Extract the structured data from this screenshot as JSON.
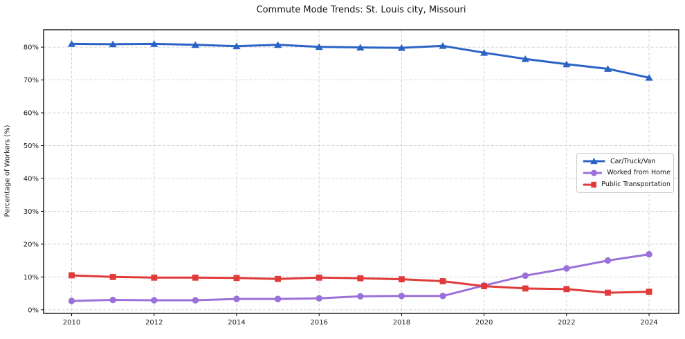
{
  "chart_data": {
    "type": "line",
    "title": "Commute Mode Trends: St. Louis city, Missouri",
    "xlabel": "",
    "ylabel": "Percentage of Workers (%)",
    "x": [
      2010,
      2011,
      2012,
      2013,
      2014,
      2015,
      2016,
      2017,
      2018,
      2019,
      2020,
      2021,
      2022,
      2023,
      2024
    ],
    "xlim": [
      2009.32,
      2024.72
    ],
    "ylim": [
      -1.1,
      85.3
    ],
    "grid": true,
    "x_ticks": {
      "values": [
        2010,
        2012,
        2014,
        2016,
        2018,
        2020,
        2022,
        2024
      ],
      "labels": [
        "2010",
        "2012",
        "2014",
        "2016",
        "2018",
        "2020",
        "2022",
        "2024"
      ]
    },
    "y_ticks": {
      "values": [
        0,
        10,
        20,
        30,
        40,
        50,
        60,
        70,
        80
      ],
      "labels": [
        "0%",
        "10%",
        "20%",
        "30%",
        "40%",
        "50%",
        "60%",
        "70%",
        "80%"
      ]
    },
    "legend": {
      "position": "center-right"
    },
    "series": [
      {
        "name": "Car/Truck/Van",
        "color": "#2b63c5",
        "marker": "triangle",
        "values": [
          81.0,
          80.9,
          81.0,
          80.7,
          80.3,
          80.7,
          80.1,
          79.9,
          79.8,
          80.4,
          78.3,
          76.4,
          74.8,
          73.4,
          70.7
        ]
      },
      {
        "name": "Worked from Home",
        "color": "#9a71d8",
        "marker": "circle",
        "values": [
          2.7,
          3.0,
          2.9,
          2.9,
          3.3,
          3.3,
          3.5,
          4.1,
          4.2,
          4.2,
          7.4,
          10.4,
          12.6,
          15.0,
          16.9
        ]
      },
      {
        "name": "Public Transportation",
        "color": "#e03a39",
        "marker": "square",
        "values": [
          10.5,
          10.0,
          9.8,
          9.8,
          9.7,
          9.4,
          9.8,
          9.6,
          9.3,
          8.7,
          7.2,
          6.5,
          6.3,
          5.2,
          5.5
        ]
      }
    ]
  }
}
